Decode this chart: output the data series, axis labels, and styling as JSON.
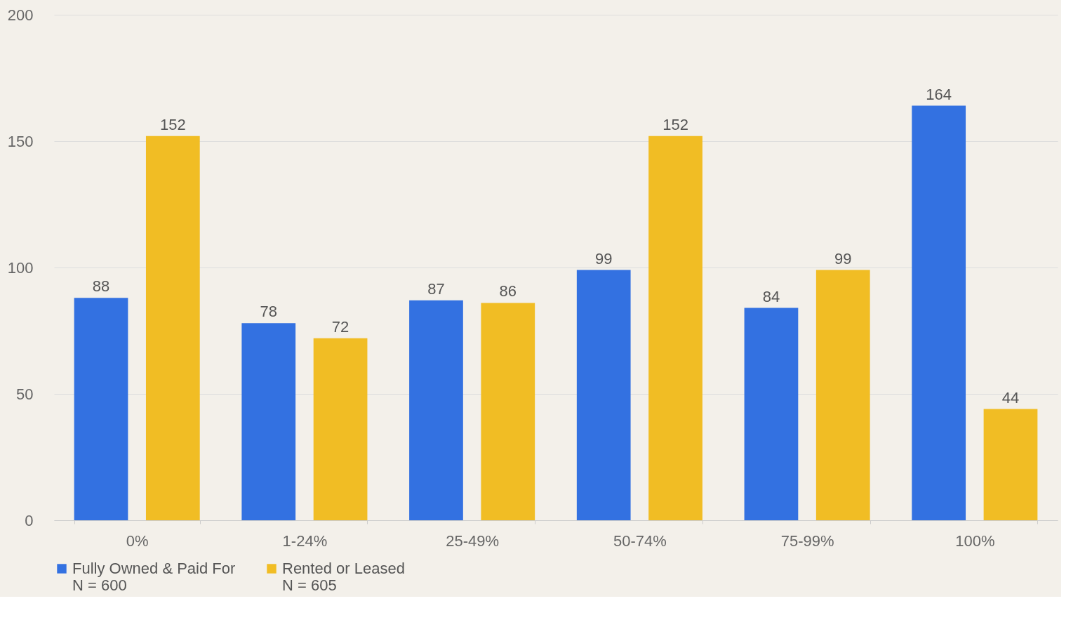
{
  "chart_data": {
    "type": "bar",
    "categories": [
      "0%",
      "1-24%",
      "25-49%",
      "50-74%",
      "75-99%",
      "100%"
    ],
    "series": [
      {
        "name": "Fully Owned & Paid For\nN = 600",
        "color": "#3371e1",
        "values": [
          88,
          78,
          87,
          99,
          84,
          164
        ]
      },
      {
        "name": "Rented or Leased\nN = 605",
        "color": "#f1bd24",
        "values": [
          152,
          72,
          86,
          152,
          99,
          44
        ]
      }
    ],
    "ylim": [
      0,
      200
    ],
    "yticks": [
      0,
      50,
      100,
      150,
      200
    ],
    "grid": "y",
    "legend": "bottom",
    "data_labels": true
  }
}
